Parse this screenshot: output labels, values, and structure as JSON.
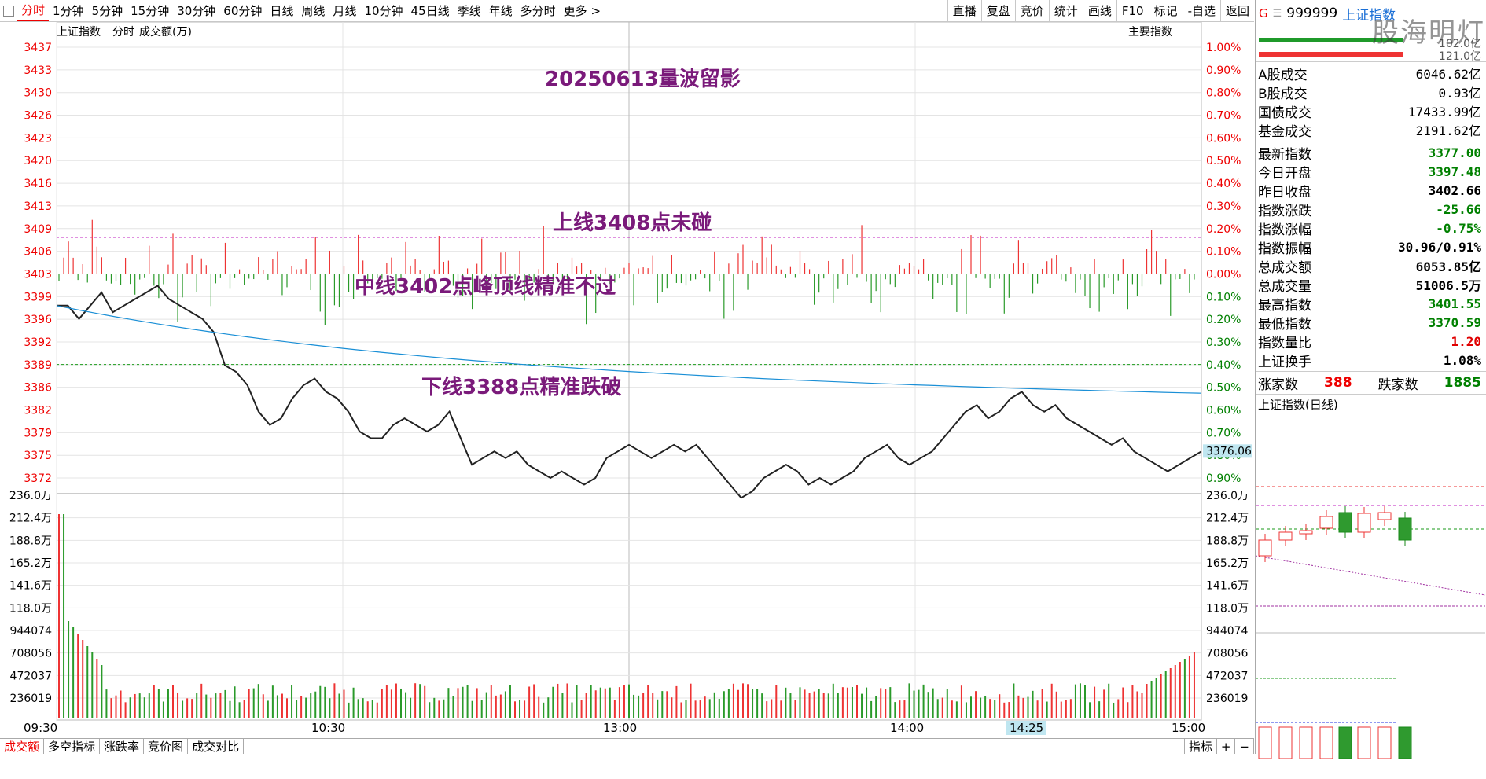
{
  "toolbar": {
    "items": [
      "分时",
      "1分钟",
      "5分钟",
      "15分钟",
      "30分钟",
      "60分钟",
      "日线",
      "周线",
      "月线",
      "10分钟",
      "45日线",
      "季线",
      "年线",
      "多分时",
      "更多 >"
    ],
    "right_buttons": [
      "直播",
      "复盘",
      "竞价",
      "统计",
      "画线",
      "F10",
      "标记",
      "-自选",
      "返回"
    ]
  },
  "chart_header": {
    "index_name": "上证指数",
    "mode": "分时",
    "volume_unit": "成交额(万)",
    "main_index_label": "主要指数"
  },
  "annotations": {
    "title": "20250613量波留影",
    "upper": "上线3408点未碰",
    "middle": "中线3402点峰顶线精准不过",
    "lower": "下线3388点精准跌破"
  },
  "price_axis_left": [
    "3437",
    "3433",
    "3430",
    "3426",
    "3423",
    "3420",
    "3416",
    "3413",
    "3409",
    "3406",
    "3403",
    "3399",
    "3396",
    "3392",
    "3389",
    "3386",
    "3382",
    "3379",
    "3375",
    "3372"
  ],
  "pct_axis_right": [
    "1.00%",
    "0.90%",
    "0.80%",
    "0.70%",
    "0.60%",
    "0.50%",
    "0.40%",
    "0.30%",
    "0.20%",
    "0.10%",
    "0.00%",
    "0.10%",
    "0.20%",
    "0.30%",
    "0.40%",
    "0.50%",
    "0.60%",
    "0.70%",
    "0.80%",
    "0.90%"
  ],
  "volume_axis": [
    "236.0万",
    "212.4万",
    "188.8万",
    "165.2万",
    "141.6万",
    "118.0万",
    "944074",
    "708056",
    "472037",
    "236019"
  ],
  "current_price_tag": "3376.06",
  "time_labels": [
    "09:30",
    "10:30",
    "13:00",
    "14:00",
    "14:25",
    "15:00"
  ],
  "bottom_tabs": [
    "成交额",
    "多空指标",
    "涨跌率",
    "竞价图",
    "成交对比"
  ],
  "bottom_right": [
    "指标",
    "+",
    "−"
  ],
  "sidebar": {
    "code": "999999",
    "name": "上证指数",
    "g_label": "G",
    "scale_top": "102.0亿",
    "scale_bot": "121.0亿",
    "volume_rows": [
      {
        "label": "A股成交",
        "value": "6046.62亿"
      },
      {
        "label": "B股成交",
        "value": "0.93亿"
      },
      {
        "label": "国债成交",
        "value": "17433.99亿"
      },
      {
        "label": "基金成交",
        "value": "2191.62亿"
      }
    ],
    "quote_rows": [
      {
        "label": "最新指数",
        "value": "3377.00",
        "color": "#008000"
      },
      {
        "label": "今日开盘",
        "value": "3397.48",
        "color": "#008000"
      },
      {
        "label": "昨日收盘",
        "value": "3402.66",
        "color": "#000000"
      },
      {
        "label": "指数涨跌",
        "value": "-25.66",
        "color": "#008000"
      },
      {
        "label": "指数涨幅",
        "value": "-0.75%",
        "color": "#008000"
      },
      {
        "label": "指数振幅",
        "value": "30.96/0.91%",
        "color": "#000000"
      },
      {
        "label": "总成交额",
        "value": "6053.85亿",
        "color": "#000000"
      },
      {
        "label": "总成交量",
        "value": "51006.5万",
        "color": "#000000"
      },
      {
        "label": "最高指数",
        "value": "3401.55",
        "color": "#008000"
      },
      {
        "label": "最低指数",
        "value": "3370.59",
        "color": "#008000"
      },
      {
        "label": "指数量比",
        "value": "1.20",
        "color": "#e00000"
      },
      {
        "label": "上证换手",
        "value": "1.08%",
        "color": "#000000"
      }
    ],
    "up_label": "涨家数",
    "up_count": "388",
    "down_label": "跌家数",
    "down_count": "1885",
    "daily_title": "上证指数(日线)"
  },
  "watermark": "股海明灯",
  "colors": {
    "up": "#e00000",
    "down": "#008000",
    "avg_line": "#1a8fd6",
    "price_line": "#222222",
    "annotation": "#7a1a7a"
  }
}
